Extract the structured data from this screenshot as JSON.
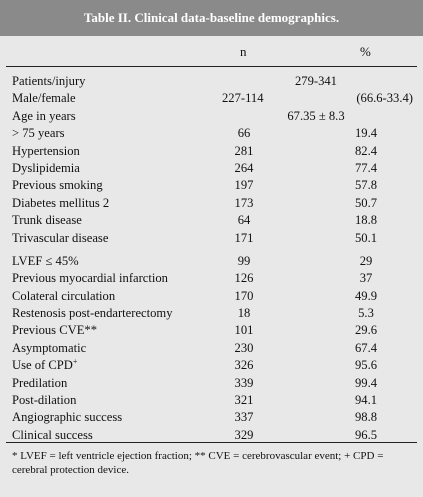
{
  "title": "Table II. Clinical data-baseline demographics.",
  "columns": {
    "n": "n",
    "pct": "%"
  },
  "patients": {
    "label": "Patients/injury",
    "value": "279-341"
  },
  "sex": {
    "label": "Male/female",
    "n": "227-114",
    "pct": "(66.6-33.4)"
  },
  "age": {
    "label": "Age in years",
    "value": "67.35 ± 8.3"
  },
  "rows": [
    {
      "label": "> 75 years",
      "n": "66",
      "pct": "19.4"
    },
    {
      "label": "Hypertension",
      "n": "281",
      "pct": "82.4"
    },
    {
      "label": "Dyslipidemia",
      "n": "264",
      "pct": "77.4"
    },
    {
      "label": "Previous smoking",
      "n": "197",
      "pct": "57.8"
    },
    {
      "label": "Diabetes mellitus 2",
      "n": "173",
      "pct": "50.7"
    },
    {
      "label": "Trunk disease",
      "n": "64",
      "pct": "18.8"
    },
    {
      "label": "Trivascular disease",
      "n": "171",
      "pct": "50.1"
    },
    {
      "label": "LVEF ≤ 45%",
      "n": "99",
      "pct": "29"
    },
    {
      "label": "Previous myocardial infarction",
      "n": "126",
      "pct": "37"
    },
    {
      "label": "Colateral circulation",
      "n": "170",
      "pct": "49.9"
    },
    {
      "label": "Restenosis post-endarterectomy",
      "n": "18",
      "pct": "5.3"
    },
    {
      "label": "Previous CVE**",
      "n": "101",
      "pct": "29.6"
    },
    {
      "label": "Asymptomatic",
      "n": "230",
      "pct": "67.4"
    },
    {
      "label": "Use of CPD",
      "n": "326",
      "pct": "95.6"
    },
    {
      "label": "Predilation",
      "n": "339",
      "pct": "99.4"
    },
    {
      "label": "Post-dilation",
      "n": "321",
      "pct": "94.1"
    },
    {
      "label": "Angiographic success",
      "n": "337",
      "pct": "98.8"
    },
    {
      "label": "Clinical success",
      "n": "329",
      "pct": "96.5"
    }
  ],
  "cpd_sup": "+",
  "footnote": "* LVEF = left ventricle ejection fraction; ** CVE = cerebrovascular event; + CPD = cerebral protection device."
}
